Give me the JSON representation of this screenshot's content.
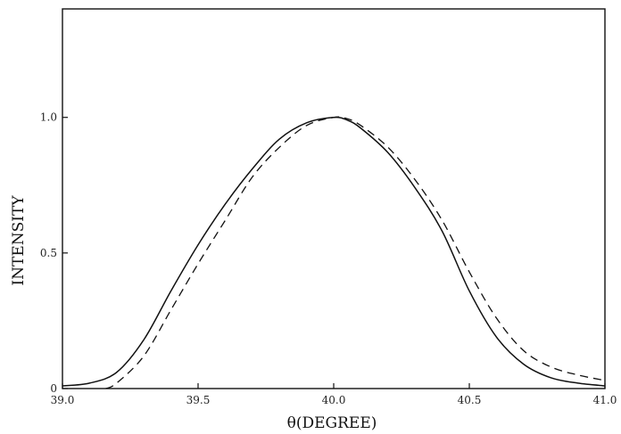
{
  "chart_data": {
    "type": "line",
    "title": "",
    "xlabel": "θ(DEGREE)",
    "ylabel": "INTENSITY",
    "xlim": [
      39.0,
      41.0
    ],
    "ylim": [
      0,
      1.4
    ],
    "grid": false,
    "legend": "none",
    "x_ticks": [
      {
        "value": 39.0,
        "label": "39.0"
      },
      {
        "value": 39.5,
        "label": "39.5"
      },
      {
        "value": 40.0,
        "label": "40.0"
      },
      {
        "value": 40.5,
        "label": "40.5"
      },
      {
        "value": 41.0,
        "label": "41.0"
      }
    ],
    "y_ticks": [
      {
        "value": 0,
        "label": "0"
      },
      {
        "value": 0.5,
        "label": "0.5"
      },
      {
        "value": 1.0,
        "label": "1.0"
      }
    ],
    "series": [
      {
        "style": "solid",
        "color": "#111111",
        "x": [
          39.0,
          39.1,
          39.2,
          39.3,
          39.4,
          39.5,
          39.6,
          39.7,
          39.8,
          39.9,
          40.0,
          40.05,
          40.1,
          40.2,
          40.3,
          40.4,
          40.5,
          40.6,
          40.7,
          40.8,
          40.9,
          41.0
        ],
        "y": [
          0.01,
          0.02,
          0.06,
          0.18,
          0.36,
          0.53,
          0.68,
          0.81,
          0.92,
          0.98,
          1.0,
          0.99,
          0.96,
          0.87,
          0.74,
          0.58,
          0.36,
          0.19,
          0.09,
          0.04,
          0.02,
          0.01
        ]
      },
      {
        "style": "dashed",
        "color": "#111111",
        "x": [
          39.16,
          39.2,
          39.3,
          39.4,
          39.5,
          39.6,
          39.7,
          39.8,
          39.9,
          40.0,
          40.05,
          40.1,
          40.2,
          40.3,
          40.4,
          40.5,
          40.6,
          40.7,
          40.8,
          40.9,
          41.0
        ],
        "y": [
          0.0,
          0.02,
          0.12,
          0.29,
          0.46,
          0.62,
          0.78,
          0.89,
          0.97,
          1.0,
          0.995,
          0.97,
          0.89,
          0.77,
          0.62,
          0.43,
          0.26,
          0.14,
          0.08,
          0.05,
          0.03
        ]
      }
    ]
  }
}
